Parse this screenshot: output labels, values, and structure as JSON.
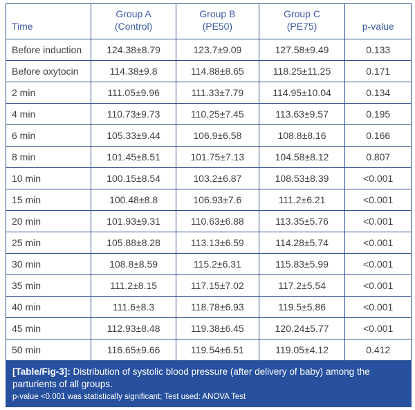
{
  "table": {
    "columns": [
      "Time",
      "Group A\n(Control)",
      "Group B\n(PE50)",
      "Group C\n(PE75)",
      "p-value"
    ],
    "rows": [
      {
        "time": "Before induction",
        "a": "124.38±8.79",
        "b": "123.7±9.09",
        "c": "127.58±9.49",
        "p": "0.133"
      },
      {
        "time": "Before oxytocin",
        "a": "114.38±9.8",
        "b": "114.88±8.65",
        "c": "118.25±11.25",
        "p": "0.171"
      },
      {
        "time": "2 min",
        "a": "111.05±9.96",
        "b": "111.33±7.79",
        "c": "114.95±10.04",
        "p": "0.134"
      },
      {
        "time": "4 min",
        "a": "110.73±9.73",
        "b": "110.25±7.45",
        "c": "113.63±9.57",
        "p": "0.195"
      },
      {
        "time": "6 min",
        "a": "105.33±9.44",
        "b": "106.9±6.58",
        "c": "108.8±8.16",
        "p": "0.166"
      },
      {
        "time": "8 min",
        "a": "101.45±8.51",
        "b": "101.75±7.13",
        "c": "104.58±8.12",
        "p": "0.807"
      },
      {
        "time": "10 min",
        "a": "100.15±8.54",
        "b": "103.2±6.87",
        "c": "108.53±8.39",
        "p": "<0.001"
      },
      {
        "time": "15 min",
        "a": "100.48±8.8",
        "b": "106.93±7.6",
        "c": "111.2±6.21",
        "p": "<0.001"
      },
      {
        "time": "20 min",
        "a": "101.93±9.31",
        "b": "110.63±6.88",
        "c": "113.35±5.76",
        "p": "<0.001"
      },
      {
        "time": "25 min",
        "a": "105.88±8.28",
        "b": "113.13±6.59",
        "c": "114.28±5.74",
        "p": "<0.001"
      },
      {
        "time": "30 min",
        "a": "108.8±8.59",
        "b": "115.2±6.31",
        "c": "115.83±5.99",
        "p": "<0.001"
      },
      {
        "time": "35 min",
        "a": "111.2±8.15",
        "b": "117.15±7.02",
        "c": "117.2±5.54",
        "p": "<0.001"
      },
      {
        "time": "40 min",
        "a": "111.6±8.3",
        "b": "118.78±6.93",
        "c": "119.5±5.86",
        "p": "<0.001"
      },
      {
        "time": "45 min",
        "a": "112.93±8.48",
        "b": "119.38±6.45",
        "c": "120.24±5.77",
        "p": "<0.001"
      },
      {
        "time": "50 min",
        "a": "116.65±9.66",
        "b": "119.54±6.51",
        "c": "119.05±4.12",
        "p": "0.412"
      }
    ]
  },
  "caption": {
    "tag": "[Table/Fig-3]:",
    "text": " Distribution of systolic blood pressure (after delivery of baby) among the parturients of all groups.",
    "note": "p-value <0.001 was statistically significant; Test used: ANOVA Test"
  },
  "colors": {
    "border": "#2d4f92",
    "header_text": "#3b5aa6",
    "caption_background": "#27509e",
    "caption_text": "#ffffff",
    "body_text": "#3f3f3f"
  }
}
